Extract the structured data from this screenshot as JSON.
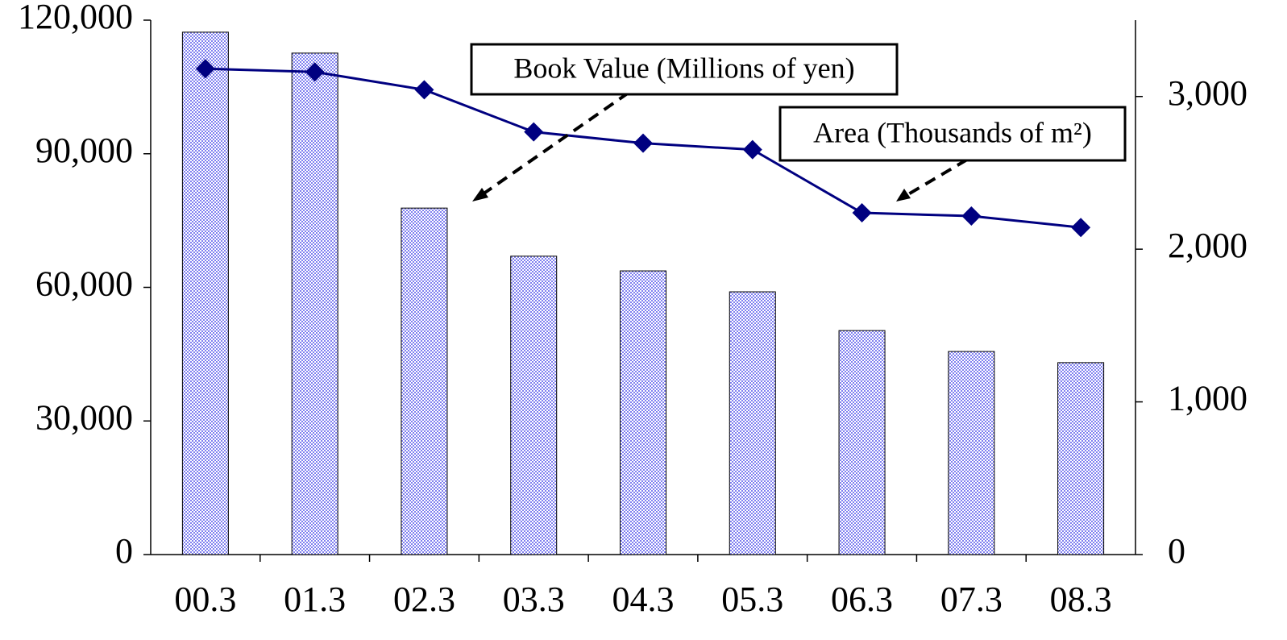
{
  "chart_data": {
    "type": "bar-line",
    "categories": [
      "00.3",
      "01.3",
      "02.3",
      "03.3",
      "04.3",
      "05.3",
      "06.3",
      "07.3",
      "08.3"
    ],
    "series": [
      {
        "name": "Book Value (Millions of yen)",
        "type": "bar",
        "axis": "y",
        "color": "#9b9bf0",
        "values": [
          117300,
          112600,
          77800,
          67000,
          63700,
          59000,
          50300,
          45600,
          43100
        ]
      },
      {
        "name": "Area (Thousands of m²)",
        "type": "line",
        "axis": "y2",
        "color": "#000080",
        "values": [
          3182,
          3161,
          3044,
          2768,
          2694,
          2652,
          2238,
          2217,
          2142
        ]
      }
    ],
    "ylim": [
      0,
      120000
    ],
    "yticks": [
      {
        "value": 0,
        "label": "0"
      },
      {
        "value": 30000,
        "label": "30,000"
      },
      {
        "value": 60000,
        "label": "60,000"
      },
      {
        "value": 90000,
        "label": "90,000"
      },
      {
        "value": 120000,
        "label": "120,000"
      }
    ],
    "y2lim": [
      0,
      3500
    ],
    "y2ticks": [
      {
        "value": 0,
        "label": "0"
      },
      {
        "value": 1000,
        "label": "1,000"
      },
      {
        "value": 2000,
        "label": "2,000"
      },
      {
        "value": 3000,
        "label": "3,000"
      }
    ]
  }
}
